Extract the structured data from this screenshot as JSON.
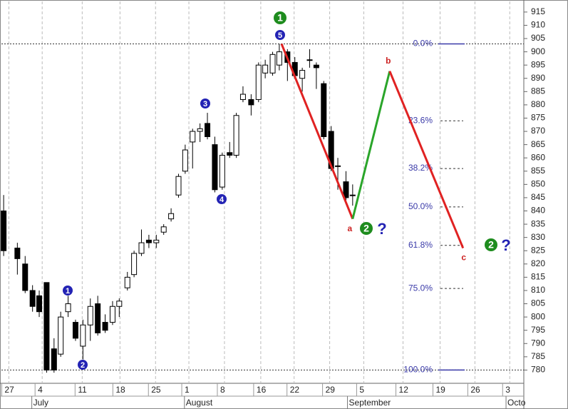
{
  "chart_data": {
    "type": "candlestick",
    "ylim": [
      775,
      919
    ],
    "yticks": [
      780,
      785,
      790,
      795,
      800,
      805,
      810,
      815,
      820,
      825,
      830,
      835,
      840,
      845,
      850,
      855,
      860,
      865,
      870,
      875,
      880,
      885,
      890,
      895,
      900,
      905,
      910,
      915
    ],
    "xlim": [
      -1,
      69.5
    ],
    "xticks": [
      {
        "value": 0,
        "label": "27"
      },
      {
        "value": 4.5,
        "label": "4"
      },
      {
        "value": 9.9,
        "label": "11"
      },
      {
        "value": 15,
        "label": "18"
      },
      {
        "value": 19.8,
        "label": "25"
      },
      {
        "value": 24.3,
        "label": "1"
      },
      {
        "value": 29.1,
        "label": "8"
      },
      {
        "value": 34,
        "label": "16"
      },
      {
        "value": 38.5,
        "label": "22"
      },
      {
        "value": 43.3,
        "label": "29"
      },
      {
        "value": 47.9,
        "label": "5"
      },
      {
        "value": 53.2,
        "label": "12"
      },
      {
        "value": 58.2,
        "label": "19"
      },
      {
        "value": 62.9,
        "label": "26"
      },
      {
        "value": 67.6,
        "label": "3"
      }
    ],
    "months": [
      {
        "value": 3.1,
        "label": "July"
      },
      {
        "value": 23.7,
        "label": "August"
      },
      {
        "value": 45.7,
        "label": "September"
      },
      {
        "value": 67.1,
        "label": "Octo"
      }
    ],
    "grid": true,
    "up_color": "#ffffff",
    "down_color": "#000000",
    "candles": {
      "x": [
        -0.7,
        1.15,
        2.2,
        3.2,
        4.1,
        5.1,
        6.1,
        7.0,
        8.0,
        9.0,
        10.0,
        11.0,
        12.0,
        13.0,
        14.0,
        14.9,
        16.0,
        16.9,
        17.9,
        18.9,
        19.9,
        20.9,
        21.9,
        22.9,
        23.8,
        24.8,
        25.8,
        26.8,
        27.8,
        28.8,
        29.8,
        30.7,
        31.6,
        32.7,
        33.7,
        34.6,
        35.6,
        36.5,
        37.6,
        38.6,
        39.6,
        40.6,
        41.5,
        42.5,
        43.5,
        44.4,
        45.5,
        46.4
      ],
      "open": [
        840,
        826,
        820,
        810,
        808,
        813,
        788,
        786,
        802,
        798,
        789,
        797,
        805,
        798,
        798,
        804,
        811,
        816,
        824,
        829,
        828,
        832,
        837,
        846,
        855,
        866,
        870,
        873,
        865,
        849,
        862,
        861,
        882,
        882,
        882,
        892,
        892,
        895,
        900,
        896,
        890,
        897,
        895,
        888,
        870,
        857,
        851,
        846
      ],
      "high": [
        846,
        828,
        823,
        812,
        810,
        813,
        792,
        802,
        808,
        799,
        799,
        807,
        808,
        801,
        806,
        807,
        817,
        825,
        833,
        831,
        831,
        835,
        841,
        854,
        865,
        871,
        873,
        877,
        868,
        862,
        866,
        877,
        887,
        884,
        896,
        897,
        900,
        903,
        901,
        898,
        894,
        901,
        896,
        889,
        872,
        860,
        855,
        850
      ],
      "low": [
        823,
        816,
        809,
        802,
        800,
        779,
        779,
        785,
        800,
        791,
        784,
        791,
        793,
        794,
        797,
        800,
        810,
        815,
        823,
        826,
        826,
        831,
        836,
        845,
        854,
        856,
        866,
        867,
        847,
        848,
        860,
        860,
        881,
        876,
        881,
        890,
        891,
        893,
        889,
        890,
        885,
        894,
        886,
        867,
        855,
        848,
        844,
        842
      ],
      "close": [
        825,
        822,
        810,
        804,
        802,
        780,
        780,
        800,
        805,
        792,
        797,
        804,
        794,
        795,
        804,
        806,
        815,
        824,
        828,
        828,
        829,
        834,
        839,
        853,
        863,
        870,
        871,
        868,
        848,
        861,
        861,
        876,
        884,
        880,
        895,
        895,
        899,
        900,
        896,
        891,
        893,
        897,
        894,
        868,
        856,
        857,
        845,
        846
      ]
    },
    "wave_path": {
      "x": [
        36.8,
        46.4,
        51.4,
        61.3
      ],
      "y": [
        903,
        837,
        892.7,
        826
      ],
      "labels": [
        null,
        "a",
        "b",
        "c"
      ],
      "segment_colors": [
        "#e02222",
        "#2aa52a",
        "#e02222"
      ],
      "label_color": "#cc2222"
    },
    "fib_levels": [
      {
        "label": "0.0%",
        "value": 903
      },
      {
        "label": "23.6%",
        "value": 874
      },
      {
        "label": "38.2%",
        "value": 856
      },
      {
        "label": "50.0%",
        "value": 841.5
      },
      {
        "label": "61.8%",
        "value": 827
      },
      {
        "label": "75.0%",
        "value": 810.75
      },
      {
        "label": "100.0%",
        "value": 780
      }
    ],
    "fib_color": "#3a3aa8",
    "wave_labels": [
      {
        "text": "1",
        "color": "#1e8c1e"
      },
      {
        "text": "5",
        "color": "#2323b4"
      },
      {
        "text": "3",
        "color": "#2323b4"
      },
      {
        "text": "4",
        "color": "#2323b4"
      },
      {
        "text": "1",
        "color": "#2323b4"
      },
      {
        "text": "2",
        "color": "#2323b4"
      },
      {
        "text": "2",
        "color": "#1e8c1e"
      },
      {
        "text": "2",
        "color": "#1e8c1e"
      }
    ],
    "question_marks": [
      "?",
      "?"
    ],
    "question_color": "#2323b4"
  }
}
